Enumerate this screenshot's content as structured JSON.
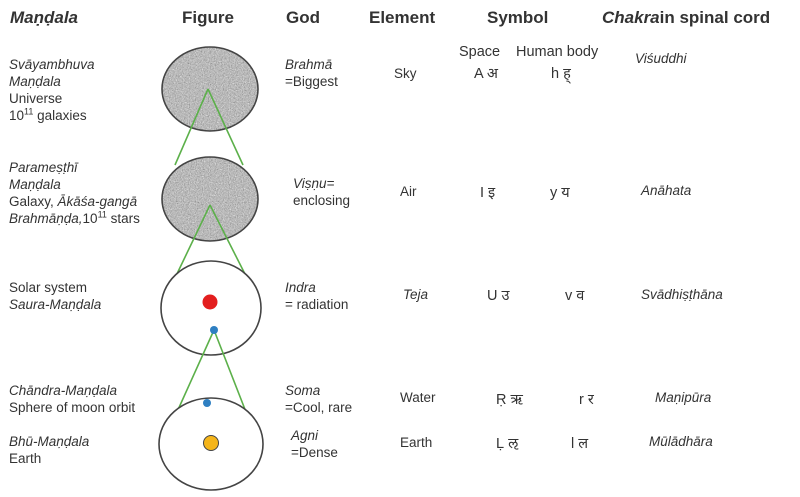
{
  "headers": {
    "mandala": "Maṇḍala",
    "figure": "Figure",
    "god": "God",
    "element": "Element",
    "symbol": "Symbol",
    "chakra_italic": "Chakra",
    "chakra_rest": "in spinal cord"
  },
  "symbol_subheaders": {
    "space": "Space",
    "human_body": "Human body"
  },
  "rows": [
    {
      "mandala_line1": "Svāyambhuva",
      "mandala_line2": "Maṇḍala",
      "mandala_line3": "Universe",
      "mandala_line4_base": "10",
      "mandala_line4_sup": "11",
      "mandala_line4_rest": " galaxies",
      "god_name": "Brahmā",
      "god_meaning": "=Biggest",
      "element": "Sky",
      "symbol_space": "A अ",
      "symbol_body": "h ह्",
      "chakra": "Viśuddhi"
    },
    {
      "mandala_line1": "Parameṣṭhī",
      "mandala_line2": "Maṇḍala",
      "mandala_line3_a": "Galaxy, ",
      "mandala_line3_b": "Ākāśa-gangā",
      "mandala_line4_a": "Brahmāṇḍa,",
      "mandala_line4_base": "10",
      "mandala_line4_sup": "11",
      "mandala_line4_rest": " stars",
      "god_name": "Viṣṇu=",
      "god_meaning": "enclosing",
      "element": "Air",
      "symbol_space": "I इ",
      "symbol_body": "y य",
      "chakra": "Anāhata"
    },
    {
      "mandala_line1": "Solar system",
      "mandala_line2": "Saura-Maṇḍala",
      "god_name": "Indra",
      "god_meaning": "= radiation",
      "element": "Teja",
      "symbol_space": "U उ",
      "symbol_body": "v व",
      "chakra": "Svādhiṣṭhāna"
    },
    {
      "mandala_line1": "Chāndra-Maṇḍala",
      "mandala_line2": "Sphere of moon orbit",
      "god_name": "Soma",
      "god_meaning": "=Cool, rare",
      "element": "Water",
      "symbol_space": "Ṛ ऋ",
      "symbol_body": "r र",
      "chakra": "Maṇipūra"
    },
    {
      "mandala_line1": "Bhū-Maṇḍala",
      "mandala_line2": "Earth",
      "god_name": "Agni",
      "god_meaning": "=Dense",
      "element": "Earth",
      "symbol_space": "Ḷ ऌ",
      "symbol_body": "l ल",
      "chakra": "Mūlādhāra"
    }
  ],
  "colors": {
    "text": "#333333",
    "granite": "#a8a8a8",
    "cone_lines": "#5cb04a",
    "sun": "#e31e1e",
    "moon": "#2e7fc2",
    "earth": "#f5b51a",
    "circle_outline": "#444444"
  }
}
